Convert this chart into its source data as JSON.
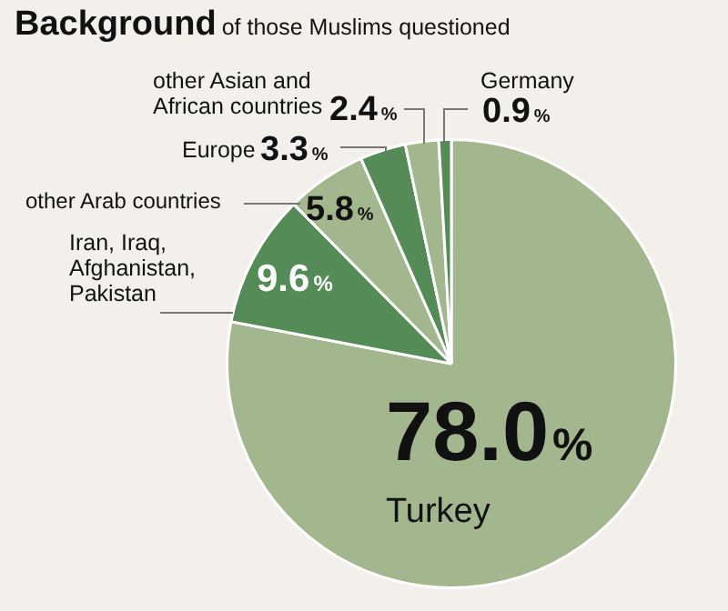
{
  "chart_data": {
    "type": "pie",
    "title": "Background",
    "subtitle": "of those Muslims questioned",
    "categories": [
      "Turkey",
      "Iran, Iraq, Afghanistan, Pakistan",
      "other Arab countries",
      "Europe",
      "other Asian and African countries",
      "Germany"
    ],
    "values": [
      78.0,
      9.6,
      5.8,
      3.3,
      2.4,
      0.9
    ],
    "colors": [
      "#a3b78f",
      "#548b56",
      "#a3b78f",
      "#548b56",
      "#a3b78f",
      "#548b56"
    ],
    "value_labels": [
      "78.0%",
      "9.6%",
      "5.8%",
      "3.3%",
      "2.4%",
      "0.9%"
    ],
    "legend": false
  }
}
